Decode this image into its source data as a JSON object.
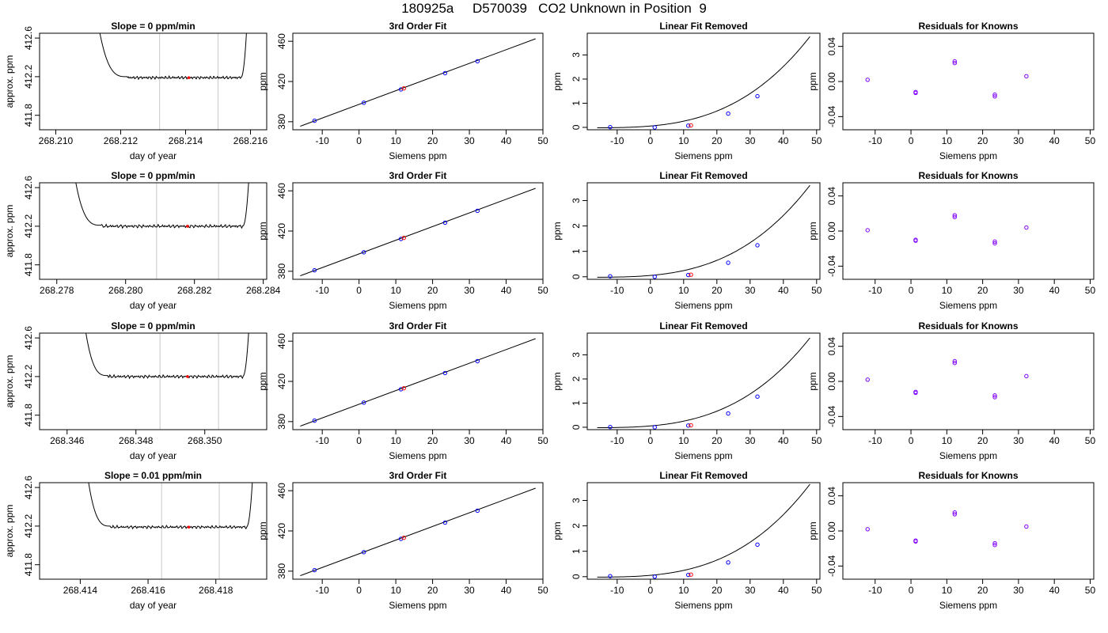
{
  "page": {
    "title": "180925a     D570039   CO2 Unknown in Position  9"
  },
  "chart_data": [
    {
      "row": 0,
      "col": 0,
      "type": "line",
      "title": "Slope =  0  ppm/min",
      "xlabel": "day of year",
      "ylabel": "approx. ppm",
      "xlim": [
        268.2095,
        268.2165
      ],
      "ylim": [
        411.65,
        412.65
      ],
      "xticks": [
        268.21,
        268.212,
        268.214,
        268.216
      ],
      "xtick_labels": [
        "268.210",
        "268.212",
        "268.214",
        "268.216"
      ],
      "yticks": [
        411.8,
        412.2,
        412.6
      ],
      "ytick_labels": [
        "411.8",
        "412.2",
        "412.6"
      ],
      "vlines": [
        268.2132,
        268.215
      ],
      "highlight": [
        268.2141,
        412.19
      ],
      "trace": {
        "start": 268.2113,
        "settle": 268.2122,
        "end": 268.2157,
        "level": 412.19,
        "amp": 0.012
      }
    },
    {
      "row": 0,
      "col": 1,
      "type": "scatter",
      "title": "3rd Order Fit",
      "xlabel": "Siemens ppm",
      "ylabel": "ppm",
      "xlim": [
        -18,
        50
      ],
      "ylim": [
        372,
        468
      ],
      "xticks": [
        -10,
        0,
        10,
        20,
        30,
        40,
        50
      ],
      "xtick_labels": [
        "-10",
        "0",
        "10",
        "20",
        "30",
        "40",
        "50"
      ],
      "yticks": [
        380,
        420,
        460
      ],
      "ytick_labels": [
        "380",
        "420",
        "460"
      ],
      "fit_line": {
        "x": [
          -16,
          48
        ],
        "y": [
          375.5,
          462.5
        ]
      },
      "points": [
        [
          -12.1,
          381.0
        ],
        [
          1.3,
          398.9
        ],
        [
          11.4,
          412.2
        ],
        [
          23.4,
          428.3
        ],
        [
          32.2,
          440.1
        ]
      ],
      "unknown": [
        12.2,
        413.2
      ]
    },
    {
      "row": 0,
      "col": 2,
      "type": "scatter",
      "title": "Linear Fit Removed",
      "xlabel": "Siemens ppm",
      "ylabel": "ppm",
      "xlim": [
        -19,
        51
      ],
      "ylim": [
        -0.1,
        3.9
      ],
      "xticks": [
        -10,
        0,
        10,
        20,
        30,
        40,
        50
      ],
      "xtick_labels": [
        "-10",
        "0",
        "10",
        "20",
        "30",
        "40",
        "50"
      ],
      "yticks": [
        0,
        1,
        2,
        3
      ],
      "ytick_labels": [
        "0",
        "1",
        "2",
        "3"
      ],
      "curve": {
        "a": 3.78,
        "b": 0.023
      },
      "points": [
        [
          -12.1,
          0.01
        ],
        [
          1.3,
          0.0
        ],
        [
          11.4,
          0.07
        ],
        [
          23.4,
          0.57
        ],
        [
          32.2,
          1.29
        ]
      ],
      "unknown": [
        12.2,
        0.08
      ]
    },
    {
      "row": 0,
      "col": 3,
      "type": "scatter",
      "title": "Residuals for Knowns",
      "xlabel": "Siemens ppm",
      "ylabel": "ppm",
      "xlim": [
        -19,
        51
      ],
      "ylim": [
        -0.055,
        0.055
      ],
      "xticks": [
        -10,
        0,
        10,
        20,
        30,
        40,
        50
      ],
      "xtick_labels": [
        "-10",
        "0",
        "10",
        "20",
        "30",
        "40",
        "50"
      ],
      "yticks": [
        -0.04,
        0.0,
        0.04
      ],
      "ytick_labels": [
        "-0.04",
        "0.00",
        "0.04"
      ],
      "points": [
        [
          -12.1,
          0.002
        ],
        [
          1.3,
          -0.012
        ],
        [
          1.3,
          -0.013
        ],
        [
          12.2,
          0.021
        ],
        [
          12.2,
          0.023
        ],
        [
          23.4,
          -0.015
        ],
        [
          23.4,
          -0.017
        ],
        [
          32.2,
          0.006
        ]
      ]
    },
    {
      "row": 1,
      "col": 0,
      "type": "line",
      "title": "Slope =  0  ppm/min",
      "xlabel": "day of year",
      "ylabel": "approx. ppm",
      "xlim": [
        268.2775,
        268.2841
      ],
      "ylim": [
        411.65,
        412.65
      ],
      "xticks": [
        268.278,
        268.28,
        268.282,
        268.284
      ],
      "xtick_labels": [
        "268.278",
        "268.280",
        "268.282",
        "268.284"
      ],
      "vlines": [
        268.2809,
        268.2827
      ],
      "highlight": [
        268.2818,
        412.2
      ],
      "yticks": [
        411.8,
        412.2,
        412.6
      ],
      "ytick_labels": [
        "411.8",
        "412.2",
        "412.6"
      ],
      "trace": {
        "start": 268.2785,
        "settle": 268.2793,
        "end": 268.2834,
        "level": 412.2,
        "amp": 0.014
      }
    },
    {
      "row": 1,
      "col": 1,
      "type": "scatter",
      "title": "3rd Order Fit",
      "xlabel": "Siemens ppm",
      "ylabel": "ppm",
      "xlim": [
        -18,
        50
      ],
      "ylim": [
        372,
        468
      ],
      "xticks": [
        -10,
        0,
        10,
        20,
        30,
        40,
        50
      ],
      "xtick_labels": [
        "-10",
        "0",
        "10",
        "20",
        "30",
        "40",
        "50"
      ],
      "yticks": [
        380,
        420,
        460
      ],
      "ytick_labels": [
        "380",
        "420",
        "460"
      ],
      "fit_line": {
        "x": [
          -16,
          48
        ],
        "y": [
          375.5,
          462.5
        ]
      },
      "points": [
        [
          -12.1,
          381.0
        ],
        [
          1.3,
          398.9
        ],
        [
          11.4,
          412.2
        ],
        [
          23.4,
          428.3
        ],
        [
          32.2,
          440.1
        ]
      ],
      "unknown": [
        12.2,
        413.2
      ]
    },
    {
      "row": 1,
      "col": 2,
      "type": "scatter",
      "title": "Linear Fit Removed",
      "xlabel": "Siemens ppm",
      "ylabel": "ppm",
      "xlim": [
        -19,
        51
      ],
      "ylim": [
        -0.1,
        3.7
      ],
      "xticks": [
        -10,
        0,
        10,
        20,
        30,
        40,
        50
      ],
      "xtick_labels": [
        "-10",
        "0",
        "10",
        "20",
        "30",
        "40",
        "50"
      ],
      "yticks": [
        0,
        1,
        2,
        3
      ],
      "ytick_labels": [
        "0",
        "1",
        "2",
        "3"
      ],
      "curve": {
        "a": 3.62,
        "b": 0.022
      },
      "points": [
        [
          -12.1,
          0.02
        ],
        [
          1.3,
          0.0
        ],
        [
          11.4,
          0.07
        ],
        [
          23.4,
          0.55
        ],
        [
          32.2,
          1.24
        ]
      ],
      "unknown": [
        12.2,
        0.08
      ]
    },
    {
      "row": 1,
      "col": 3,
      "type": "scatter",
      "title": "Residuals for Knowns",
      "xlabel": "Siemens ppm",
      "ylabel": "ppm",
      "xlim": [
        -19,
        51
      ],
      "ylim": [
        -0.055,
        0.055
      ],
      "xticks": [
        -10,
        0,
        10,
        20,
        30,
        40,
        50
      ],
      "xtick_labels": [
        "-10",
        "0",
        "10",
        "20",
        "30",
        "40",
        "50"
      ],
      "yticks": [
        -0.04,
        0.0,
        0.04
      ],
      "ytick_labels": [
        "-0.04",
        "0.00",
        "0.04"
      ],
      "points": [
        [
          -12.1,
          0.001
        ],
        [
          1.3,
          -0.01
        ],
        [
          1.3,
          -0.011
        ],
        [
          12.2,
          0.016
        ],
        [
          12.2,
          0.018
        ],
        [
          23.4,
          -0.012
        ],
        [
          23.4,
          -0.014
        ],
        [
          32.2,
          0.004
        ]
      ]
    },
    {
      "row": 2,
      "col": 0,
      "type": "line",
      "title": "Slope =  0  ppm/min",
      "xlabel": "day of year",
      "ylabel": "approx. ppm",
      "xlim": [
        268.3452,
        268.3518
      ],
      "ylim": [
        411.65,
        412.65
      ],
      "xticks": [
        268.346,
        268.348,
        268.35
      ],
      "xtick_labels": [
        "268.346",
        "268.348",
        "268.350"
      ],
      "vlines": [
        268.3487,
        268.3504
      ],
      "highlight": [
        268.3495,
        412.2
      ],
      "yticks": [
        411.8,
        412.2,
        412.6
      ],
      "ytick_labels": [
        "411.8",
        "412.2",
        "412.6"
      ],
      "trace": {
        "start": 268.3465,
        "settle": 268.3472,
        "end": 268.3511,
        "level": 412.2,
        "amp": 0.013
      }
    },
    {
      "row": 2,
      "col": 1,
      "type": "scatter",
      "title": "3rd Order Fit",
      "xlabel": "Siemens ppm",
      "ylabel": "ppm",
      "xlim": [
        -18,
        50
      ],
      "ylim": [
        372,
        468
      ],
      "xticks": [
        -10,
        0,
        10,
        20,
        30,
        40,
        50
      ],
      "xtick_labels": [
        "-10",
        "0",
        "10",
        "20",
        "30",
        "40",
        "50"
      ],
      "yticks": [
        380,
        420,
        460
      ],
      "ytick_labels": [
        "380",
        "420",
        "460"
      ],
      "fit_line": {
        "x": [
          -16,
          48
        ],
        "y": [
          375.5,
          462.5
        ]
      },
      "points": [
        [
          -12.1,
          381.0
        ],
        [
          1.3,
          398.9
        ],
        [
          11.4,
          412.2
        ],
        [
          23.4,
          428.3
        ],
        [
          32.2,
          440.1
        ]
      ],
      "unknown": [
        12.2,
        413.2
      ]
    },
    {
      "row": 2,
      "col": 2,
      "type": "scatter",
      "title": "Linear Fit Removed",
      "xlabel": "Siemens ppm",
      "ylabel": "ppm",
      "xlim": [
        -19,
        51
      ],
      "ylim": [
        -0.1,
        3.9
      ],
      "xticks": [
        -10,
        0,
        10,
        20,
        30,
        40,
        50
      ],
      "xtick_labels": [
        "-10",
        "0",
        "10",
        "20",
        "30",
        "40",
        "50"
      ],
      "yticks": [
        0,
        1,
        2,
        3
      ],
      "ytick_labels": [
        "0",
        "1",
        "2",
        "3"
      ],
      "curve": {
        "a": 3.72,
        "b": 0.023
      },
      "points": [
        [
          -12.1,
          0.01
        ],
        [
          1.3,
          0.0
        ],
        [
          11.4,
          0.07
        ],
        [
          23.4,
          0.57
        ],
        [
          32.2,
          1.27
        ]
      ],
      "unknown": [
        12.2,
        0.08
      ]
    },
    {
      "row": 2,
      "col": 3,
      "type": "scatter",
      "title": "Residuals for Knowns",
      "xlabel": "Siemens ppm",
      "ylabel": "ppm",
      "xlim": [
        -19,
        51
      ],
      "ylim": [
        -0.055,
        0.055
      ],
      "xticks": [
        -10,
        0,
        10,
        20,
        30,
        40,
        50
      ],
      "xtick_labels": [
        "-10",
        "0",
        "10",
        "20",
        "30",
        "40",
        "50"
      ],
      "yticks": [
        -0.04,
        0.0,
        0.04
      ],
      "ytick_labels": [
        "-0.04",
        "0.00",
        "0.04"
      ],
      "points": [
        [
          -12.1,
          0.002
        ],
        [
          1.3,
          -0.012
        ],
        [
          1.3,
          -0.013
        ],
        [
          12.2,
          0.021
        ],
        [
          12.2,
          0.023
        ],
        [
          23.4,
          -0.016
        ],
        [
          23.4,
          -0.018
        ],
        [
          32.2,
          0.006
        ]
      ]
    },
    {
      "row": 3,
      "col": 0,
      "type": "line",
      "title": "Slope =  0.01  ppm/min",
      "xlabel": "day of year",
      "ylabel": "approx. ppm",
      "xlim": [
        268.4128,
        268.4195
      ],
      "ylim": [
        411.65,
        412.65
      ],
      "xticks": [
        268.414,
        268.416,
        268.418
      ],
      "xtick_labels": [
        "268.414",
        "268.416",
        "268.418"
      ],
      "vlines": [
        268.4164,
        268.4181
      ],
      "highlight": [
        268.4172,
        412.19
      ],
      "yticks": [
        411.8,
        412.2,
        412.6
      ],
      "ytick_labels": [
        "411.8",
        "412.2",
        "412.6"
      ],
      "trace": {
        "start": 268.4142,
        "settle": 268.4149,
        "end": 268.4189,
        "level": 412.19,
        "amp": 0.012
      }
    },
    {
      "row": 3,
      "col": 1,
      "type": "scatter",
      "title": "3rd Order Fit",
      "xlabel": "Siemens ppm",
      "ylabel": "ppm",
      "xlim": [
        -18,
        50
      ],
      "ylim": [
        372,
        468
      ],
      "xticks": [
        -10,
        0,
        10,
        20,
        30,
        40,
        50
      ],
      "xtick_labels": [
        "-10",
        "0",
        "10",
        "20",
        "30",
        "40",
        "50"
      ],
      "yticks": [
        380,
        420,
        460
      ],
      "ytick_labels": [
        "380",
        "420",
        "460"
      ],
      "fit_line": {
        "x": [
          -16,
          48
        ],
        "y": [
          375.5,
          462.5
        ]
      },
      "points": [
        [
          -12.1,
          381.0
        ],
        [
          1.3,
          398.9
        ],
        [
          11.4,
          412.2
        ],
        [
          23.4,
          428.3
        ],
        [
          32.2,
          440.1
        ]
      ],
      "unknown": [
        12.2,
        413.2
      ]
    },
    {
      "row": 3,
      "col": 2,
      "type": "scatter",
      "title": "Linear Fit Removed",
      "xlabel": "Siemens ppm",
      "ylabel": "ppm",
      "xlim": [
        -19,
        51
      ],
      "ylim": [
        -0.1,
        3.7
      ],
      "xticks": [
        -10,
        0,
        10,
        20,
        30,
        40,
        50
      ],
      "xtick_labels": [
        "-10",
        "0",
        "10",
        "20",
        "30",
        "40",
        "50"
      ],
      "yticks": [
        0,
        1,
        2,
        3
      ],
      "ytick_labels": [
        "0",
        "1",
        "2",
        "3"
      ],
      "curve": {
        "a": 3.66,
        "b": 0.022
      },
      "points": [
        [
          -12.1,
          0.02
        ],
        [
          1.3,
          0.0
        ],
        [
          11.4,
          0.07
        ],
        [
          23.4,
          0.56
        ],
        [
          32.2,
          1.26
        ]
      ],
      "unknown": [
        12.2,
        0.08
      ]
    },
    {
      "row": 3,
      "col": 3,
      "type": "scatter",
      "title": "Residuals for Knowns",
      "xlabel": "Siemens ppm",
      "ylabel": "ppm",
      "xlim": [
        -19,
        51
      ],
      "ylim": [
        -0.055,
        0.055
      ],
      "xticks": [
        -10,
        0,
        10,
        20,
        30,
        40,
        50
      ],
      "xtick_labels": [
        "-10",
        "0",
        "10",
        "20",
        "30",
        "40",
        "50"
      ],
      "yticks": [
        -0.04,
        0.0,
        0.04
      ],
      "ytick_labels": [
        "-0.04",
        "0.00",
        "0.04"
      ],
      "points": [
        [
          -12.1,
          0.002
        ],
        [
          1.3,
          -0.011
        ],
        [
          1.3,
          -0.012
        ],
        [
          12.2,
          0.019
        ],
        [
          12.2,
          0.021
        ],
        [
          23.4,
          -0.014
        ],
        [
          23.4,
          -0.016
        ],
        [
          32.2,
          0.005
        ]
      ]
    }
  ],
  "colors": {
    "line": "#000000",
    "vline": "#c8c8c8",
    "known_point": "#0000ff",
    "unknown_point": "#ff0000",
    "residual_point": "#8000ff"
  }
}
